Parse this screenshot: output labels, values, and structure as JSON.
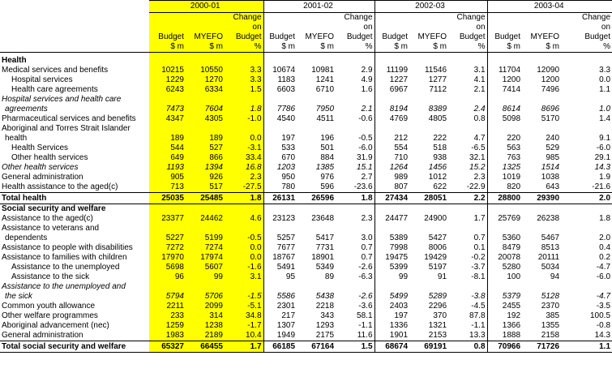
{
  "years": [
    "2000-01",
    "2001-02",
    "2002-03",
    "2003-04"
  ],
  "col_headers": {
    "budget": [
      "Budget",
      "$ m"
    ],
    "myefo": [
      "MYEFO",
      "$ m"
    ],
    "change": [
      "Change",
      "on",
      "Budget",
      "%"
    ]
  },
  "sections": [
    {
      "title": "Health",
      "rows": [
        {
          "label": "Medical services and benefits",
          "indent": false,
          "italic": false,
          "values": [
            "10215",
            "10550",
            "3.3",
            "10674",
            "10981",
            "2.9",
            "11199",
            "11546",
            "3.1",
            "11704",
            "12090",
            "3.3"
          ]
        },
        {
          "label": "Hospital services",
          "indent": true,
          "italic": false,
          "values": [
            "1229",
            "1270",
            "3.3",
            "1183",
            "1241",
            "4.9",
            "1227",
            "1277",
            "4.1",
            "1200",
            "1200",
            "0.0"
          ]
        },
        {
          "label": "Health care agreements",
          "indent": true,
          "italic": false,
          "values": [
            "6243",
            "6334",
            "1.5",
            "6603",
            "6710",
            "1.6",
            "6967",
            "7112",
            "2.1",
            "7414",
            "7496",
            "1.1"
          ]
        },
        {
          "label": "Hospital services and health care",
          "label2": "agreements",
          "indent": false,
          "italic": true,
          "values": [
            "7473",
            "7604",
            "1.8",
            "7786",
            "7950",
            "2.1",
            "8194",
            "8389",
            "2.4",
            "8614",
            "8696",
            "1.0"
          ]
        },
        {
          "label": "Pharmaceutical services and benefits",
          "indent": false,
          "italic": false,
          "values": [
            "4347",
            "4305",
            "-1.0",
            "4540",
            "4511",
            "-0.6",
            "4769",
            "4805",
            "0.8",
            "5098",
            "5170",
            "1.4"
          ]
        },
        {
          "label": "Aboriginal and Torres Strait Islander",
          "label2": "health",
          "indent": false,
          "italic": false,
          "values": [
            "189",
            "189",
            "0.0",
            "197",
            "196",
            "-0.5",
            "212",
            "222",
            "4.7",
            "220",
            "240",
            "9.1"
          ]
        },
        {
          "label": "Health Services",
          "indent": true,
          "italic": false,
          "values": [
            "544",
            "527",
            "-3.1",
            "533",
            "501",
            "-6.0",
            "554",
            "518",
            "-6.5",
            "563",
            "529",
            "-6.0"
          ]
        },
        {
          "label": "Other health services",
          "indent": true,
          "italic": false,
          "values": [
            "649",
            "866",
            "33.4",
            "670",
            "884",
            "31.9",
            "710",
            "938",
            "32.1",
            "763",
            "985",
            "29.1"
          ]
        },
        {
          "label": "Other health services",
          "indent": false,
          "italic": true,
          "values": [
            "1193",
            "1394",
            "16.8",
            "1203",
            "1385",
            "15.1",
            "1264",
            "1456",
            "15.2",
            "1325",
            "1514",
            "14.3"
          ]
        },
        {
          "label": "General administration",
          "indent": false,
          "italic": false,
          "values": [
            "905",
            "926",
            "2.3",
            "950",
            "976",
            "2.7",
            "989",
            "1012",
            "2.3",
            "1019",
            "1038",
            "1.9"
          ]
        },
        {
          "label": "Health assistance to the aged(c)",
          "indent": false,
          "italic": false,
          "values": [
            "713",
            "517",
            "-27.5",
            "780",
            "596",
            "-23.6",
            "807",
            "622",
            "-22.9",
            "820",
            "643",
            "-21.6"
          ]
        }
      ],
      "total": {
        "label": "Total health",
        "values": [
          "25035",
          "25485",
          "1.8",
          "26131",
          "26596",
          "1.8",
          "27434",
          "28051",
          "2.2",
          "28800",
          "29390",
          "2.0"
        ]
      }
    },
    {
      "title": "Social security and welfare",
      "rows": [
        {
          "label": "Assistance to the aged(c)",
          "indent": false,
          "italic": false,
          "values": [
            "23377",
            "24462",
            "4.6",
            "23123",
            "23648",
            "2.3",
            "24477",
            "24900",
            "1.7",
            "25769",
            "26238",
            "1.8"
          ]
        },
        {
          "label": "Assistance to veterans and",
          "label2": "dependents",
          "indent": false,
          "italic": false,
          "values": [
            "5227",
            "5199",
            "-0.5",
            "5257",
            "5417",
            "3.0",
            "5389",
            "5427",
            "0.7",
            "5360",
            "5467",
            "2.0"
          ]
        },
        {
          "label": "Assistance to people with disabilities",
          "indent": false,
          "italic": false,
          "values": [
            "7272",
            "7274",
            "0.0",
            "7677",
            "7731",
            "0.7",
            "7998",
            "8006",
            "0.1",
            "8479",
            "8513",
            "0.4"
          ]
        },
        {
          "label": "Assistance to families with children",
          "indent": false,
          "italic": false,
          "values": [
            "17970",
            "17974",
            "0.0",
            "18767",
            "18901",
            "0.7",
            "19475",
            "19429",
            "-0.2",
            "20078",
            "20111",
            "0.2"
          ]
        },
        {
          "label": "Assistance to the unemployed",
          "indent": true,
          "italic": false,
          "values": [
            "5698",
            "5607",
            "-1.6",
            "5491",
            "5349",
            "-2.6",
            "5399",
            "5197",
            "-3.7",
            "5280",
            "5034",
            "-4.7"
          ]
        },
        {
          "label": "Assistance to the sick",
          "indent": true,
          "italic": false,
          "values": [
            "96",
            "99",
            "3.1",
            "95",
            "89",
            "-6.3",
            "99",
            "91",
            "-8.1",
            "100",
            "94",
            "-6.0"
          ]
        },
        {
          "label": "Assistance to the unemployed and",
          "label2": "the sick",
          "indent": false,
          "italic": true,
          "values": [
            "5794",
            "5706",
            "-1.5",
            "5586",
            "5438",
            "-2.6",
            "5499",
            "5289",
            "-3.8",
            "5379",
            "5128",
            "-4.7"
          ]
        },
        {
          "label": "Common youth allowance",
          "indent": false,
          "italic": false,
          "values": [
            "2211",
            "2099",
            "-5.1",
            "2301",
            "2218",
            "-3.6",
            "2403",
            "2296",
            "-4.5",
            "2455",
            "2370",
            "-3.5"
          ]
        },
        {
          "label": "Other welfare programmes",
          "indent": false,
          "italic": false,
          "values": [
            "233",
            "314",
            "34.8",
            "217",
            "343",
            "58.1",
            "197",
            "370",
            "87.8",
            "192",
            "385",
            "100.5"
          ]
        },
        {
          "label": "Aboriginal advancement (nec)",
          "indent": false,
          "italic": false,
          "values": [
            "1259",
            "1238",
            "-1.7",
            "1307",
            "1293",
            "-1.1",
            "1336",
            "1321",
            "-1.1",
            "1366",
            "1355",
            "-0.8"
          ]
        },
        {
          "label": "General administration",
          "indent": false,
          "italic": false,
          "values": [
            "1983",
            "2189",
            "10.4",
            "1949",
            "2175",
            "11.6",
            "1901",
            "2153",
            "13.3",
            "1888",
            "2158",
            "14.3"
          ]
        }
      ],
      "total": {
        "label": "Total social security and welfare",
        "values": [
          "65327",
          "66455",
          "1.7",
          "66185",
          "67164",
          "1.5",
          "68674",
          "69191",
          "0.8",
          "70966",
          "71726",
          "1.1"
        ]
      }
    }
  ]
}
